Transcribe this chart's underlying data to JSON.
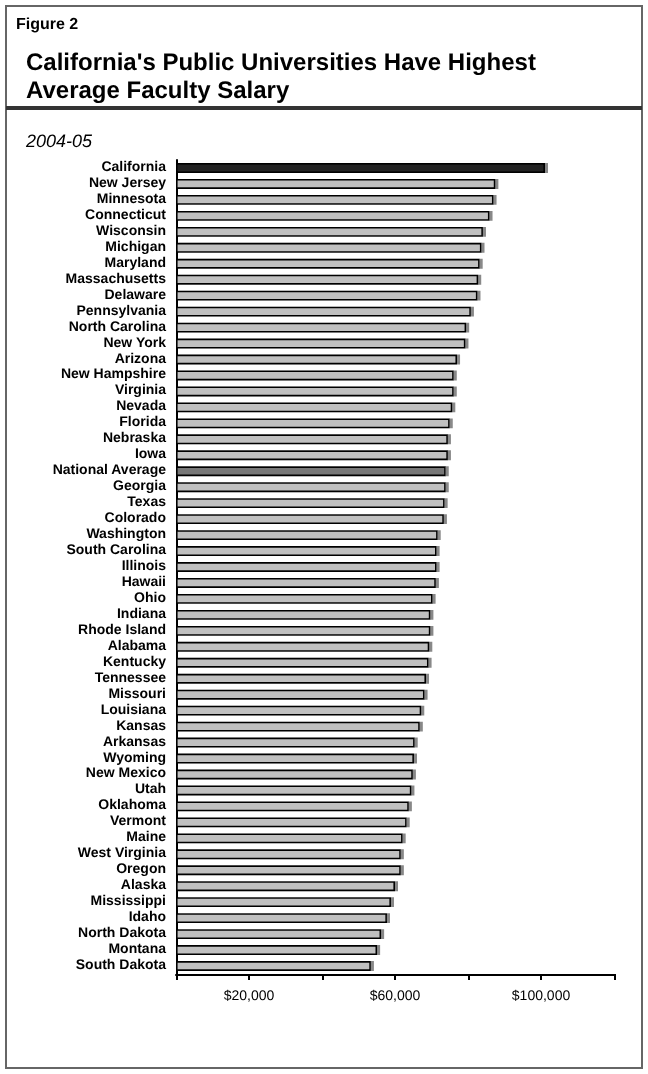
{
  "chart_data": {
    "type": "bar",
    "orientation": "horizontal",
    "title": "California's Public Universities Have Highest Average Faculty Salary",
    "subtitle": "2004-05",
    "annotations": [
      "Figure 2"
    ],
    "categories": [
      "California",
      "New Jersey",
      "Minnesota",
      "Connecticut",
      "Wisconsin",
      "Michigan",
      "Maryland",
      "Massachusetts",
      "Delaware",
      "Pennsylvania",
      "North Carolina",
      "New York",
      "Arizona",
      "New Hampshire",
      "Virginia",
      "Nevada",
      "Florida",
      "Nebraska",
      "Iowa",
      "National Average",
      "Georgia",
      "Texas",
      "Colorado",
      "Washington",
      "South Carolina",
      "Illinois",
      "Hawaii",
      "Ohio",
      "Indiana",
      "Rhode Island",
      "Alabama",
      "Kentucky",
      "Tennessee",
      "Missouri",
      "Louisiana",
      "Kansas",
      "Arkansas",
      "Wyoming",
      "New Mexico",
      "Utah",
      "Oklahoma",
      "Vermont",
      "Maine",
      "West Virginia",
      "Oregon",
      "Alaska",
      "Mississippi",
      "Idaho",
      "North Dakota",
      "Montana",
      "South Dakota"
    ],
    "values": [
      101100,
      87500,
      87000,
      85900,
      84100,
      83700,
      83200,
      82800,
      82600,
      80800,
      79500,
      79300,
      77000,
      76100,
      76100,
      75700,
      75000,
      74500,
      74500,
      73900,
      73900,
      73600,
      73400,
      71700,
      71400,
      71400,
      71200,
      70300,
      69700,
      69700,
      69400,
      69200,
      68500,
      68100,
      67200,
      66800,
      65400,
      65200,
      64900,
      64500,
      63800,
      63200,
      62100,
      61600,
      61600,
      60000,
      58900,
      57800,
      56200,
      55100,
      53400
    ],
    "colors": [
      "#222222",
      "#c0c0c0",
      "#c0c0c0",
      "#c0c0c0",
      "#c0c0c0",
      "#c0c0c0",
      "#c0c0c0",
      "#c0c0c0",
      "#c0c0c0",
      "#c0c0c0",
      "#c0c0c0",
      "#c0c0c0",
      "#c0c0c0",
      "#c0c0c0",
      "#c0c0c0",
      "#c0c0c0",
      "#c0c0c0",
      "#c0c0c0",
      "#c0c0c0",
      "#777777",
      "#c0c0c0",
      "#c0c0c0",
      "#c0c0c0",
      "#c0c0c0",
      "#c0c0c0",
      "#c0c0c0",
      "#c0c0c0",
      "#c0c0c0",
      "#c0c0c0",
      "#c0c0c0",
      "#c0c0c0",
      "#c0c0c0",
      "#c0c0c0",
      "#c0c0c0",
      "#c0c0c0",
      "#c0c0c0",
      "#c0c0c0",
      "#c0c0c0",
      "#c0c0c0",
      "#c0c0c0",
      "#c0c0c0",
      "#c0c0c0",
      "#c0c0c0",
      "#c0c0c0",
      "#c0c0c0",
      "#c0c0c0",
      "#c0c0c0",
      "#c0c0c0",
      "#c0c0c0",
      "#c0c0c0",
      "#c0c0c0"
    ],
    "xlim": [
      0,
      120000
    ],
    "xticks": [
      {
        "value": 0,
        "label": null
      },
      {
        "value": 20000,
        "label": "$20,000"
      },
      {
        "value": 40000,
        "label": null
      },
      {
        "value": 60000,
        "label": "$60,000"
      },
      {
        "value": 80000,
        "label": null
      },
      {
        "value": 100000,
        "label": "$100,000"
      },
      {
        "value": 120000,
        "label": null
      }
    ],
    "grid": false
  }
}
